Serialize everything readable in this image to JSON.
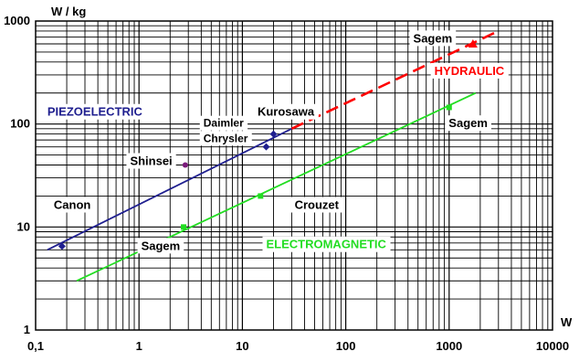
{
  "chart_data": {
    "type": "line",
    "xlabel": "W",
    "ylabel": "W / kg",
    "x_scale": "log",
    "y_scale": "log",
    "xlim": [
      0.1,
      10000
    ],
    "ylim": [
      1,
      1000
    ],
    "grid": true,
    "x_ticks": [
      "0,1",
      "1",
      "10",
      "100",
      "1000",
      "10000"
    ],
    "y_ticks": [
      "1",
      "10",
      "100",
      "1000"
    ],
    "series": [
      {
        "name": "PIEZOELECTRIC",
        "color": "#1f1f8f",
        "style": "solid",
        "x": [
          0.13,
          30
        ],
        "y": [
          6,
          90
        ]
      },
      {
        "name": "HYDRAULIC",
        "color": "#ff0000",
        "style": "dashed",
        "x": [
          30,
          3000
        ],
        "y": [
          90,
          800
        ]
      },
      {
        "name": "ELECTROMAGNETIC",
        "color": "#22dd22",
        "style": "solid",
        "x": [
          0.25,
          1800
        ],
        "y": [
          3,
          200
        ]
      }
    ],
    "points": [
      {
        "x": 0.18,
        "y": 6.5,
        "color": "#1f1f8f",
        "shape": "diamond"
      },
      {
        "x": 17,
        "y": 60,
        "color": "#1f1f8f",
        "shape": "diamond"
      },
      {
        "x": 20,
        "y": 80,
        "color": "#1f1f8f",
        "shape": "diamond"
      },
      {
        "x": 2.8,
        "y": 40,
        "color": "#7a1b7a",
        "shape": "dot"
      },
      {
        "x": 1700,
        "y": 600,
        "color": "#ff0000",
        "shape": "triangle"
      },
      {
        "x": 2.7,
        "y": 10,
        "color": "#22dd22",
        "shape": "square"
      },
      {
        "x": 15,
        "y": 20,
        "color": "#22dd22",
        "shape": "square"
      },
      {
        "x": 1000,
        "y": 145,
        "color": "#22dd22",
        "shape": "square"
      }
    ],
    "annotations": [
      {
        "text": "PIEZOELECTRIC",
        "color": "#1f1f8f",
        "lx": 0.13,
        "ly": 120,
        "size": "normal"
      },
      {
        "text": "HYDRAULIC",
        "color": "#ff0000",
        "lx": 720,
        "ly": 300,
        "size": "normal"
      },
      {
        "text": "ELECTROMAGNETIC",
        "color": "#22dd22",
        "lx": 17,
        "ly": 6.2,
        "size": "normal"
      },
      {
        "text": "Sagem",
        "color": "#000000",
        "lx": 450,
        "ly": 620,
        "size": "normal"
      },
      {
        "text": "Kurosawa",
        "color": "#000000",
        "lx": 14,
        "ly": 120,
        "size": "normal"
      },
      {
        "text": "Daimler",
        "color": "#000000",
        "lx": 4.2,
        "ly": 94,
        "size": "small"
      },
      {
        "text": "Chrysler",
        "color": "#000000",
        "lx": 4.2,
        "ly": 67,
        "size": "small"
      },
      {
        "text": "Sagem",
        "color": "#000000",
        "lx": 990,
        "ly": 93,
        "size": "normal"
      },
      {
        "text": "Shinsei",
        "color": "#000000",
        "lx": 0.82,
        "ly": 40,
        "size": "normal"
      },
      {
        "text": "Canon",
        "color": "#000000",
        "lx": 0.15,
        "ly": 15,
        "size": "normal"
      },
      {
        "text": "Crouzet",
        "color": "#000000",
        "lx": 32,
        "ly": 15,
        "size": "normal"
      },
      {
        "text": "Sagem",
        "color": "#000000",
        "lx": 1.05,
        "ly": 6.0,
        "size": "normal"
      }
    ]
  }
}
